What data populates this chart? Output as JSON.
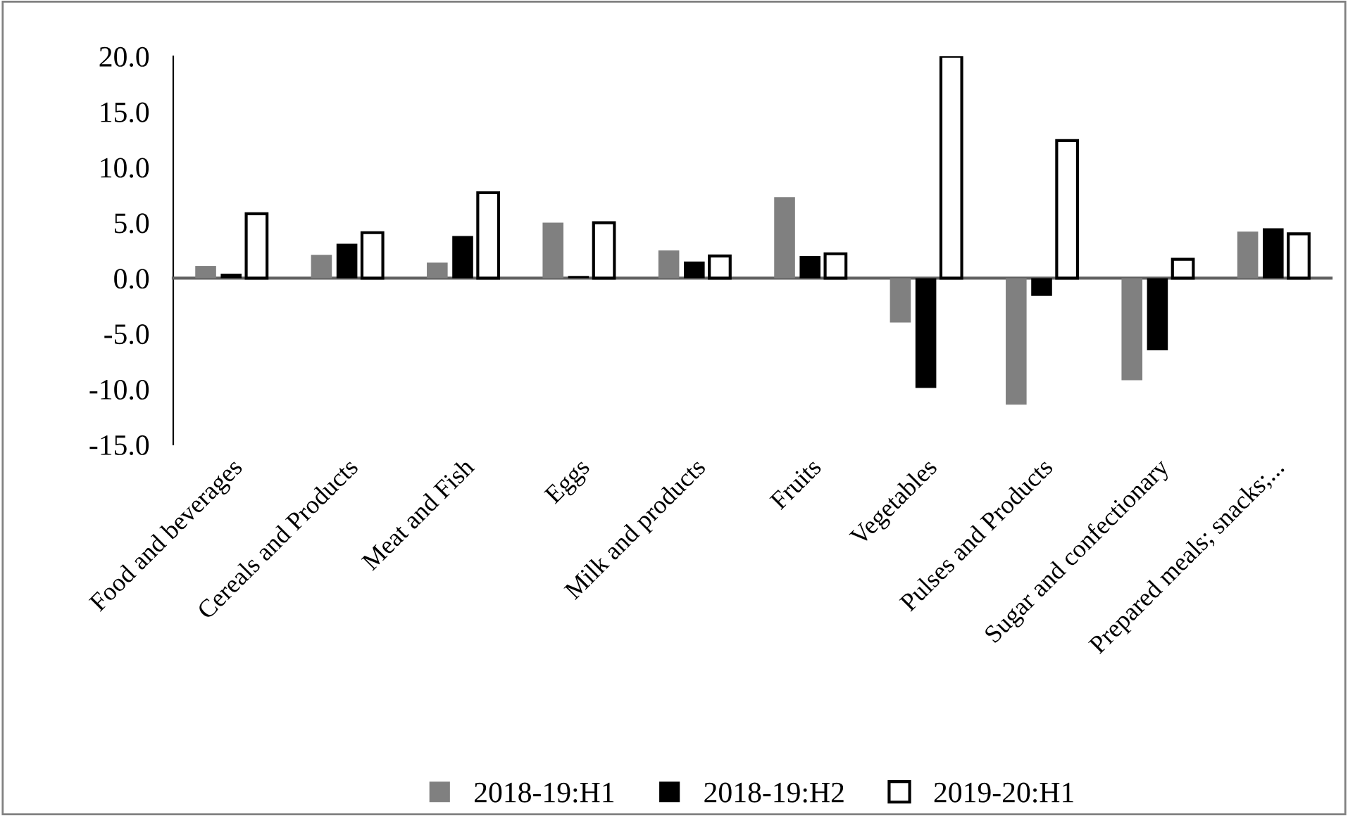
{
  "chart_data": {
    "type": "bar",
    "categories": [
      "Food and beverages",
      "Cereals and Products",
      "Meat and Fish",
      "Eggs",
      "Milk and products",
      "Fruits",
      "Vegetables",
      "Pulses and Products",
      "Sugar and confectionary",
      "Prepared meals; snacks;..."
    ],
    "series": [
      {
        "name": "2018-19:H1",
        "color": "#808080",
        "values": [
          1.1,
          2.1,
          1.4,
          5.0,
          2.5,
          7.3,
          -4.0,
          -11.4,
          -9.2,
          4.2
        ]
      },
      {
        "name": "2018-19:H2",
        "color": "#000000",
        "values": [
          0.4,
          3.1,
          3.8,
          0.2,
          1.5,
          2.0,
          -9.9,
          -1.6,
          -6.5,
          4.5
        ]
      },
      {
        "name": "2019-20:H1",
        "color": "#ffffff",
        "values": [
          5.8,
          4.1,
          7.7,
          5.0,
          2.0,
          2.2,
          20.0,
          12.4,
          1.7,
          4.0
        ]
      }
    ],
    "ylim": [
      -15,
      20
    ],
    "yticks": [
      {
        "value": -15,
        "label": "-15.0"
      },
      {
        "value": -10,
        "label": "-10.0"
      },
      {
        "value": -5,
        "label": "-5.0"
      },
      {
        "value": 0,
        "label": "0.0"
      },
      {
        "value": 5,
        "label": "5.0"
      },
      {
        "value": 10,
        "label": "10.0"
      },
      {
        "value": 15,
        "label": "15.0"
      },
      {
        "value": 20,
        "label": "20.0"
      }
    ],
    "legend": "bottom"
  }
}
